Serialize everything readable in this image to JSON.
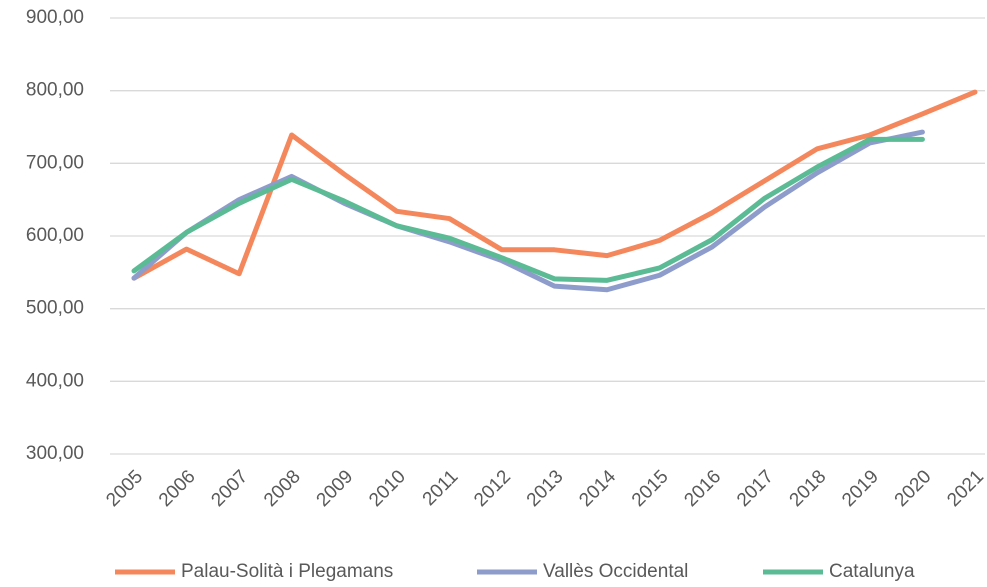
{
  "chart_data": {
    "type": "line",
    "categories": [
      "2005",
      "2006",
      "2007",
      "2008",
      "2009",
      "2010",
      "2011",
      "2012",
      "2013",
      "2014",
      "2015",
      "2016",
      "2017",
      "2018",
      "2019",
      "2020",
      "2021"
    ],
    "series": [
      {
        "name": "Palau-Solità i Plegamans",
        "color": "#f4875b",
        "values": [
          542,
          582,
          548,
          739,
          685,
          634,
          624,
          581,
          581,
          573,
          594,
          632,
          676,
          720,
          739,
          768,
          798
        ]
      },
      {
        "name": "Vallès Occidental",
        "color": "#8e9ccc",
        "values": [
          542,
          605,
          650,
          682,
          645,
          614,
          592,
          566,
          531,
          526,
          546,
          585,
          640,
          687,
          728,
          743,
          null
        ]
      },
      {
        "name": "Catalunya",
        "color": "#5abb94",
        "values": [
          552,
          605,
          645,
          678,
          648,
          614,
          597,
          570,
          541,
          539,
          556,
          595,
          652,
          695,
          733,
          733,
          null
        ]
      }
    ],
    "ylim": [
      300,
      900
    ],
    "yticks": [
      {
        "value": 300,
        "label": "300,00"
      },
      {
        "value": 400,
        "label": "400,00"
      },
      {
        "value": 500,
        "label": "500,00"
      },
      {
        "value": 600,
        "label": "600,00"
      },
      {
        "value": 700,
        "label": "700,00"
      },
      {
        "value": 800,
        "label": "800,00"
      },
      {
        "value": 900,
        "label": "900,00"
      }
    ],
    "grid": true,
    "legend": "bottom"
  }
}
